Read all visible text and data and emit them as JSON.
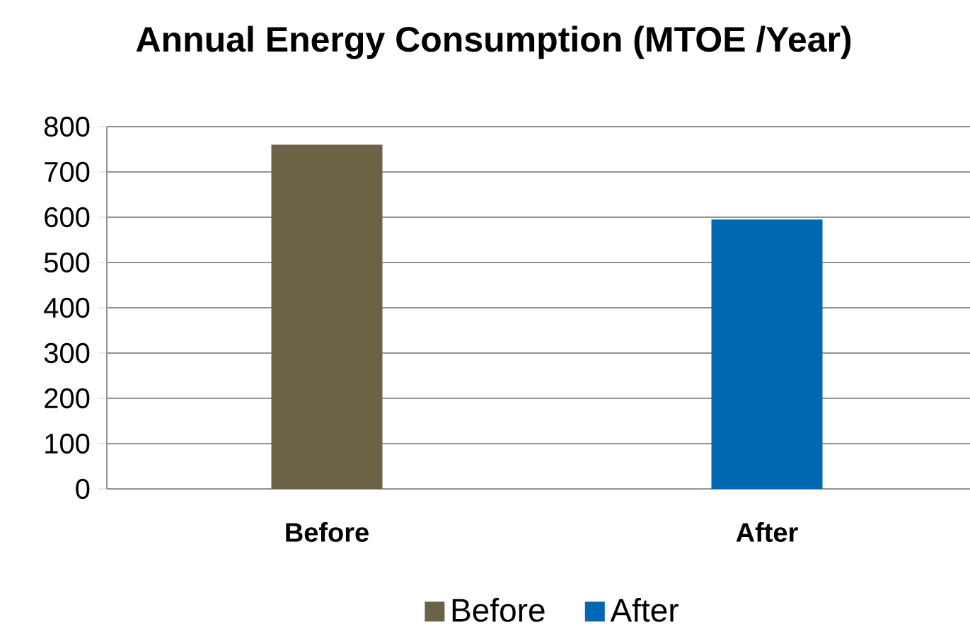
{
  "chart_data": {
    "type": "bar",
    "title": "Annual Energy Consumption (MTOE /Year)",
    "categories": [
      "Before",
      "After"
    ],
    "series": [
      {
        "name": "Before",
        "color": "#6c6346",
        "values": [
          760,
          null
        ]
      },
      {
        "name": "After",
        "color": "#0068b3",
        "values": [
          null,
          595
        ]
      }
    ],
    "ylim": [
      0,
      800
    ],
    "yticks": [
      0,
      100,
      200,
      300,
      400,
      500,
      600,
      700,
      800
    ],
    "grid": "y",
    "legend": "bottom"
  }
}
